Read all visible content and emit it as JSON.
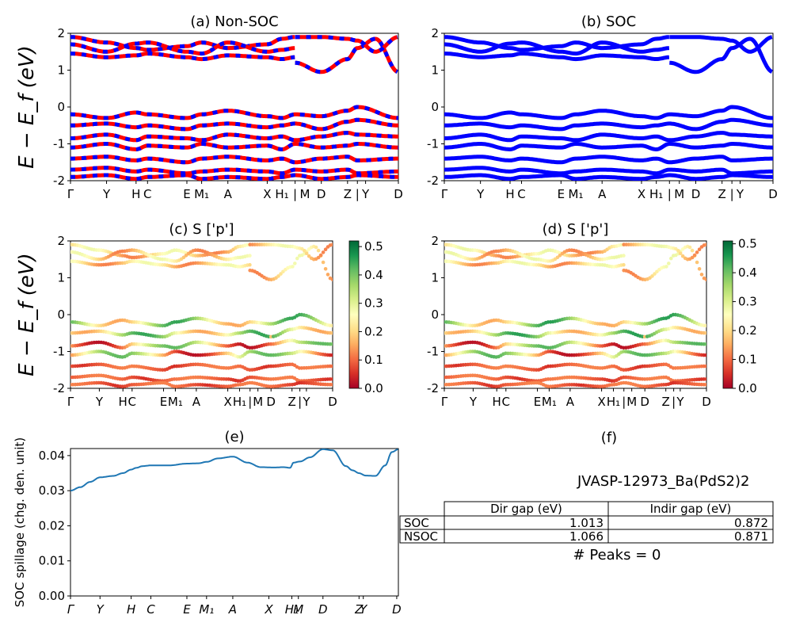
{
  "colors": {
    "nonsoc_up": "#ff0000",
    "nonsoc_dn": "#0000ff",
    "soc": "#0000ff",
    "spillage_line": "#1f77b4",
    "colormap": [
      "#a50026",
      "#d73027",
      "#f46d43",
      "#fdae61",
      "#fee08b",
      "#ffffbf",
      "#d9ef8b",
      "#a6d96a",
      "#66bd63",
      "#1a9850",
      "#006837"
    ]
  },
  "ylabel_band": "E − E_f (eV)",
  "band_kpath_labels": [
    "Γ",
    "Y",
    "H",
    "C",
    "E",
    "M₁",
    "A",
    "X",
    "H₁",
    "|",
    "M",
    "D",
    "Z",
    "|",
    "Y",
    "D"
  ],
  "chart_data": [
    {
      "id": "a",
      "type": "line",
      "title": "(a) Non-SOC",
      "ylim": [
        -2,
        2
      ],
      "yticks": [
        -2,
        -1,
        0,
        1,
        2
      ],
      "xlim": [
        0,
        1
      ],
      "xticks": [
        {
          "label": "Γ",
          "x": 0.0
        },
        {
          "label": "Y",
          "x": 0.11
        },
        {
          "label": "H",
          "x": 0.2
        },
        {
          "label": "C",
          "x": 0.235
        },
        {
          "label": "E",
          "x": 0.355
        },
        {
          "label": "M₁",
          "x": 0.4
        },
        {
          "label": "A",
          "x": 0.48
        },
        {
          "label": "X",
          "x": 0.6
        },
        {
          "label": "H₁",
          "x": 0.645
        },
        {
          "label": "|",
          "x": 0.685
        },
        {
          "label": "M",
          "x": 0.715
        },
        {
          "label": "D",
          "x": 0.765
        },
        {
          "label": "Z",
          "x": 0.845
        },
        {
          "label": "|",
          "x": 0.875
        },
        {
          "label": "Y",
          "x": 0.9
        },
        {
          "label": "D",
          "x": 1.0
        }
      ],
      "series": [
        {
          "x": [
            0,
            0.11,
            0.2,
            0.235,
            0.355,
            0.4,
            0.48,
            0.6,
            0.645,
            0.685
          ],
          "y": [
            1.9,
            1.75,
            1.6,
            1.55,
            1.65,
            1.75,
            1.6,
            1.7,
            1.85,
            1.9
          ]
        },
        {
          "x": [
            0,
            0.11,
            0.2,
            0.235,
            0.355,
            0.4,
            0.48,
            0.6,
            0.645,
            0.685
          ],
          "y": [
            1.7,
            1.5,
            1.72,
            1.75,
            1.5,
            1.45,
            1.75,
            1.5,
            1.55,
            1.6
          ]
        },
        {
          "x": [
            0,
            0.11,
            0.2,
            0.235,
            0.355,
            0.4,
            0.48,
            0.6,
            0.645,
            0.685
          ],
          "y": [
            1.45,
            1.35,
            1.4,
            1.45,
            1.35,
            1.3,
            1.4,
            1.35,
            1.3,
            1.35
          ]
        },
        {
          "x": [
            0.685,
            0.765,
            0.845,
            0.875,
            0.93,
            1.0
          ],
          "y": [
            1.2,
            0.95,
            1.3,
            1.6,
            1.85,
            0.95
          ]
        },
        {
          "x": [
            0.685,
            0.765,
            0.845,
            0.875,
            0.93,
            1.0
          ],
          "y": [
            1.9,
            1.9,
            1.85,
            1.8,
            1.5,
            1.9
          ]
        },
        {
          "x": [
            0,
            0.11,
            0.2,
            0.235,
            0.355,
            0.4,
            0.48,
            0.6,
            0.645,
            0.685,
            0.765,
            0.845,
            0.875,
            1.0
          ],
          "y": [
            -0.2,
            -0.3,
            -0.15,
            -0.2,
            -0.3,
            -0.2,
            -0.1,
            -0.25,
            -0.3,
            -0.2,
            -0.25,
            -0.1,
            0,
            -0.3
          ]
        },
        {
          "x": [
            0,
            0.11,
            0.2,
            0.235,
            0.355,
            0.4,
            0.48,
            0.6,
            0.645,
            0.685,
            0.765,
            0.845,
            0.875,
            1.0
          ],
          "y": [
            -0.5,
            -0.45,
            -0.55,
            -0.5,
            -0.6,
            -0.5,
            -0.45,
            -0.55,
            -0.5,
            -0.45,
            -0.6,
            -0.4,
            -0.35,
            -0.5
          ]
        },
        {
          "x": [
            0,
            0.11,
            0.2,
            0.235,
            0.355,
            0.4,
            0.48,
            0.6,
            0.645,
            0.685,
            0.765,
            0.845,
            0.875,
            1.0
          ],
          "y": [
            -0.85,
            -0.75,
            -0.9,
            -0.8,
            -0.85,
            -0.9,
            -0.75,
            -0.85,
            -0.8,
            -0.9,
            -0.8,
            -0.7,
            -0.75,
            -0.8
          ]
        },
        {
          "x": [
            0,
            0.11,
            0.2,
            0.235,
            0.355,
            0.4,
            0.48,
            0.6,
            0.645,
            0.685,
            0.765,
            0.845,
            0.875,
            1.0
          ],
          "y": [
            -1.1,
            -1.0,
            -1.15,
            -1.05,
            -1.1,
            -1.0,
            -1.1,
            -1.05,
            -1.15,
            -1.0,
            -1.1,
            -1.05,
            -1.0,
            -1.1
          ]
        },
        {
          "x": [
            0,
            0.11,
            0.2,
            0.235,
            0.355,
            0.4,
            0.48,
            0.6,
            0.645,
            0.685,
            0.765,
            0.845,
            0.875,
            1.0
          ],
          "y": [
            -1.4,
            -1.35,
            -1.45,
            -1.4,
            -1.5,
            -1.4,
            -1.35,
            -1.45,
            -1.4,
            -1.5,
            -1.4,
            -1.35,
            -1.45,
            -1.4
          ]
        },
        {
          "x": [
            0,
            0.11,
            0.2,
            0.235,
            0.355,
            0.4,
            0.48,
            0.6,
            0.645,
            0.685,
            0.765,
            0.845,
            0.875,
            1.0
          ],
          "y": [
            -1.7,
            -1.65,
            -1.75,
            -1.7,
            -1.8,
            -1.75,
            -1.7,
            -1.75,
            -1.8,
            -1.7,
            -1.75,
            -1.7,
            -1.8,
            -1.75
          ]
        },
        {
          "x": [
            0,
            0.11,
            0.2,
            0.235,
            0.355,
            0.4,
            0.48,
            0.6,
            0.645,
            0.685,
            0.765,
            0.845,
            0.875,
            1.0
          ],
          "y": [
            -1.9,
            -1.85,
            -1.95,
            -1.9,
            -1.85,
            -1.95,
            -1.9,
            -1.95,
            -1.9,
            -1.85,
            -1.95,
            -1.9,
            -1.85,
            -1.9
          ]
        }
      ]
    },
    {
      "id": "b",
      "type": "line",
      "title": "(b) SOC",
      "ylim": [
        -2,
        2
      ],
      "yticks": [
        -2,
        -1,
        0,
        1,
        2
      ],
      "xlim": [
        0,
        1
      ],
      "xticks": [
        {
          "label": "Γ",
          "x": 0.0
        },
        {
          "label": "Y",
          "x": 0.11
        },
        {
          "label": "H",
          "x": 0.2
        },
        {
          "label": "C",
          "x": 0.235
        },
        {
          "label": "E",
          "x": 0.355
        },
        {
          "label": "M₁",
          "x": 0.4
        },
        {
          "label": "A",
          "x": 0.48
        },
        {
          "label": "X",
          "x": 0.6
        },
        {
          "label": "H₁",
          "x": 0.645
        },
        {
          "label": "|",
          "x": 0.685
        },
        {
          "label": "M",
          "x": 0.715
        },
        {
          "label": "D",
          "x": 0.765
        },
        {
          "label": "Z",
          "x": 0.845
        },
        {
          "label": "|",
          "x": 0.875
        },
        {
          "label": "Y",
          "x": 0.9
        },
        {
          "label": "D",
          "x": 1.0
        }
      ]
    },
    {
      "id": "c",
      "type": "scatter",
      "title": "(c)  S ['p']",
      "ylim": [
        -2,
        2
      ],
      "yticks": [
        -2,
        -1,
        0,
        1,
        2
      ],
      "xlim": [
        0,
        1
      ],
      "colorbar": {
        "ticks": [
          0.0,
          0.1,
          0.2,
          0.3,
          0.4,
          0.5
        ],
        "range": [
          0,
          0.52
        ]
      },
      "xticks": [
        {
          "label": "Γ",
          "x": 0.0
        },
        {
          "label": "Y",
          "x": 0.11
        },
        {
          "label": "H",
          "x": 0.2
        },
        {
          "label": "C",
          "x": 0.235
        },
        {
          "label": "E",
          "x": 0.355
        },
        {
          "label": "M₁",
          "x": 0.4
        },
        {
          "label": "A",
          "x": 0.48
        },
        {
          "label": "X",
          "x": 0.6
        },
        {
          "label": "H₁",
          "x": 0.645
        },
        {
          "label": "|",
          "x": 0.685
        },
        {
          "label": "M",
          "x": 0.715
        },
        {
          "label": "D",
          "x": 0.765
        },
        {
          "label": "Z",
          "x": 0.845
        },
        {
          "label": "|",
          "x": 0.875
        },
        {
          "label": "Y",
          "x": 0.9
        },
        {
          "label": "D",
          "x": 1.0
        }
      ]
    },
    {
      "id": "d",
      "type": "scatter",
      "title": "(d) S ['p']",
      "ylim": [
        -2,
        2
      ],
      "yticks": [
        -2,
        -1,
        0,
        1,
        2
      ],
      "xlim": [
        0,
        1
      ],
      "colorbar": {
        "ticks": [
          0.0,
          0.1,
          0.2,
          0.3,
          0.4,
          0.5
        ],
        "range": [
          0,
          0.51
        ]
      },
      "xticks": [
        {
          "label": "Γ",
          "x": 0.0
        },
        {
          "label": "Y",
          "x": 0.11
        },
        {
          "label": "H",
          "x": 0.2
        },
        {
          "label": "C",
          "x": 0.235
        },
        {
          "label": "E",
          "x": 0.355
        },
        {
          "label": "M₁",
          "x": 0.4
        },
        {
          "label": "A",
          "x": 0.48
        },
        {
          "label": "X",
          "x": 0.6
        },
        {
          "label": "H₁",
          "x": 0.645
        },
        {
          "label": "|",
          "x": 0.685
        },
        {
          "label": "M",
          "x": 0.715
        },
        {
          "label": "D",
          "x": 0.765
        },
        {
          "label": "Z",
          "x": 0.845
        },
        {
          "label": "|",
          "x": 0.875
        },
        {
          "label": "Y",
          "x": 0.9
        },
        {
          "label": "D",
          "x": 1.0
        }
      ]
    },
    {
      "id": "e",
      "type": "line",
      "title": "(e)",
      "ylabel": "SOC spillage (chg. den. unit)",
      "ylim": [
        0,
        0.042
      ],
      "yticks": [
        0.0,
        0.01,
        0.02,
        0.03,
        0.04
      ],
      "yticklabels": [
        "0.00",
        "0.01",
        "0.02",
        "0.03",
        "0.04"
      ],
      "xlim": [
        0,
        1
      ],
      "xticks": [
        {
          "label": "Γ",
          "x": 0.0
        },
        {
          "label": "Y",
          "x": 0.09
        },
        {
          "label": "H",
          "x": 0.185
        },
        {
          "label": "C",
          "x": 0.245
        },
        {
          "label": "E",
          "x": 0.355
        },
        {
          "label": "M₁",
          "x": 0.415
        },
        {
          "label": "A",
          "x": 0.495
        },
        {
          "label": "X",
          "x": 0.605
        },
        {
          "label": "H₁",
          "x": 0.675
        },
        {
          "label": "M",
          "x": 0.695
        },
        {
          "label": "D",
          "x": 0.77
        },
        {
          "label": "Z",
          "x": 0.88
        },
        {
          "label": "Y",
          "x": 0.893
        },
        {
          "label": "D",
          "x": 0.995
        }
      ],
      "series": [
        {
          "x": [
            0,
            0.03,
            0.06,
            0.09,
            0.13,
            0.16,
            0.185,
            0.2,
            0.22,
            0.245,
            0.3,
            0.355,
            0.39,
            0.415,
            0.45,
            0.495,
            0.54,
            0.58,
            0.62,
            0.65,
            0.67,
            0.68,
            0.7,
            0.73,
            0.77,
            0.8,
            0.84,
            0.86,
            0.88,
            0.9,
            0.93,
            0.96,
            0.98,
            1.0
          ],
          "y": [
            0.03,
            0.031,
            0.0325,
            0.0338,
            0.0342,
            0.035,
            0.036,
            0.0365,
            0.037,
            0.0372,
            0.0372,
            0.0377,
            0.0378,
            0.0382,
            0.0392,
            0.0397,
            0.038,
            0.0367,
            0.0366,
            0.0367,
            0.0365,
            0.038,
            0.0383,
            0.0395,
            0.0418,
            0.0415,
            0.037,
            0.0358,
            0.035,
            0.0343,
            0.0342,
            0.0372,
            0.041,
            0.0418
          ]
        }
      ]
    },
    {
      "id": "f",
      "type": "table",
      "title": "(f)",
      "subtitle": "JVASP-12973_Ba(PdS2)2",
      "columns": [
        "Dir gap (eV)",
        "Indir gap (eV)"
      ],
      "rows": [
        {
          "label": "SOC",
          "values": [
            "1.013",
            "0.872"
          ]
        },
        {
          "label": "NSOC",
          "values": [
            "1.066",
            "0.871"
          ]
        }
      ],
      "footer": "# Peaks = 0"
    }
  ]
}
